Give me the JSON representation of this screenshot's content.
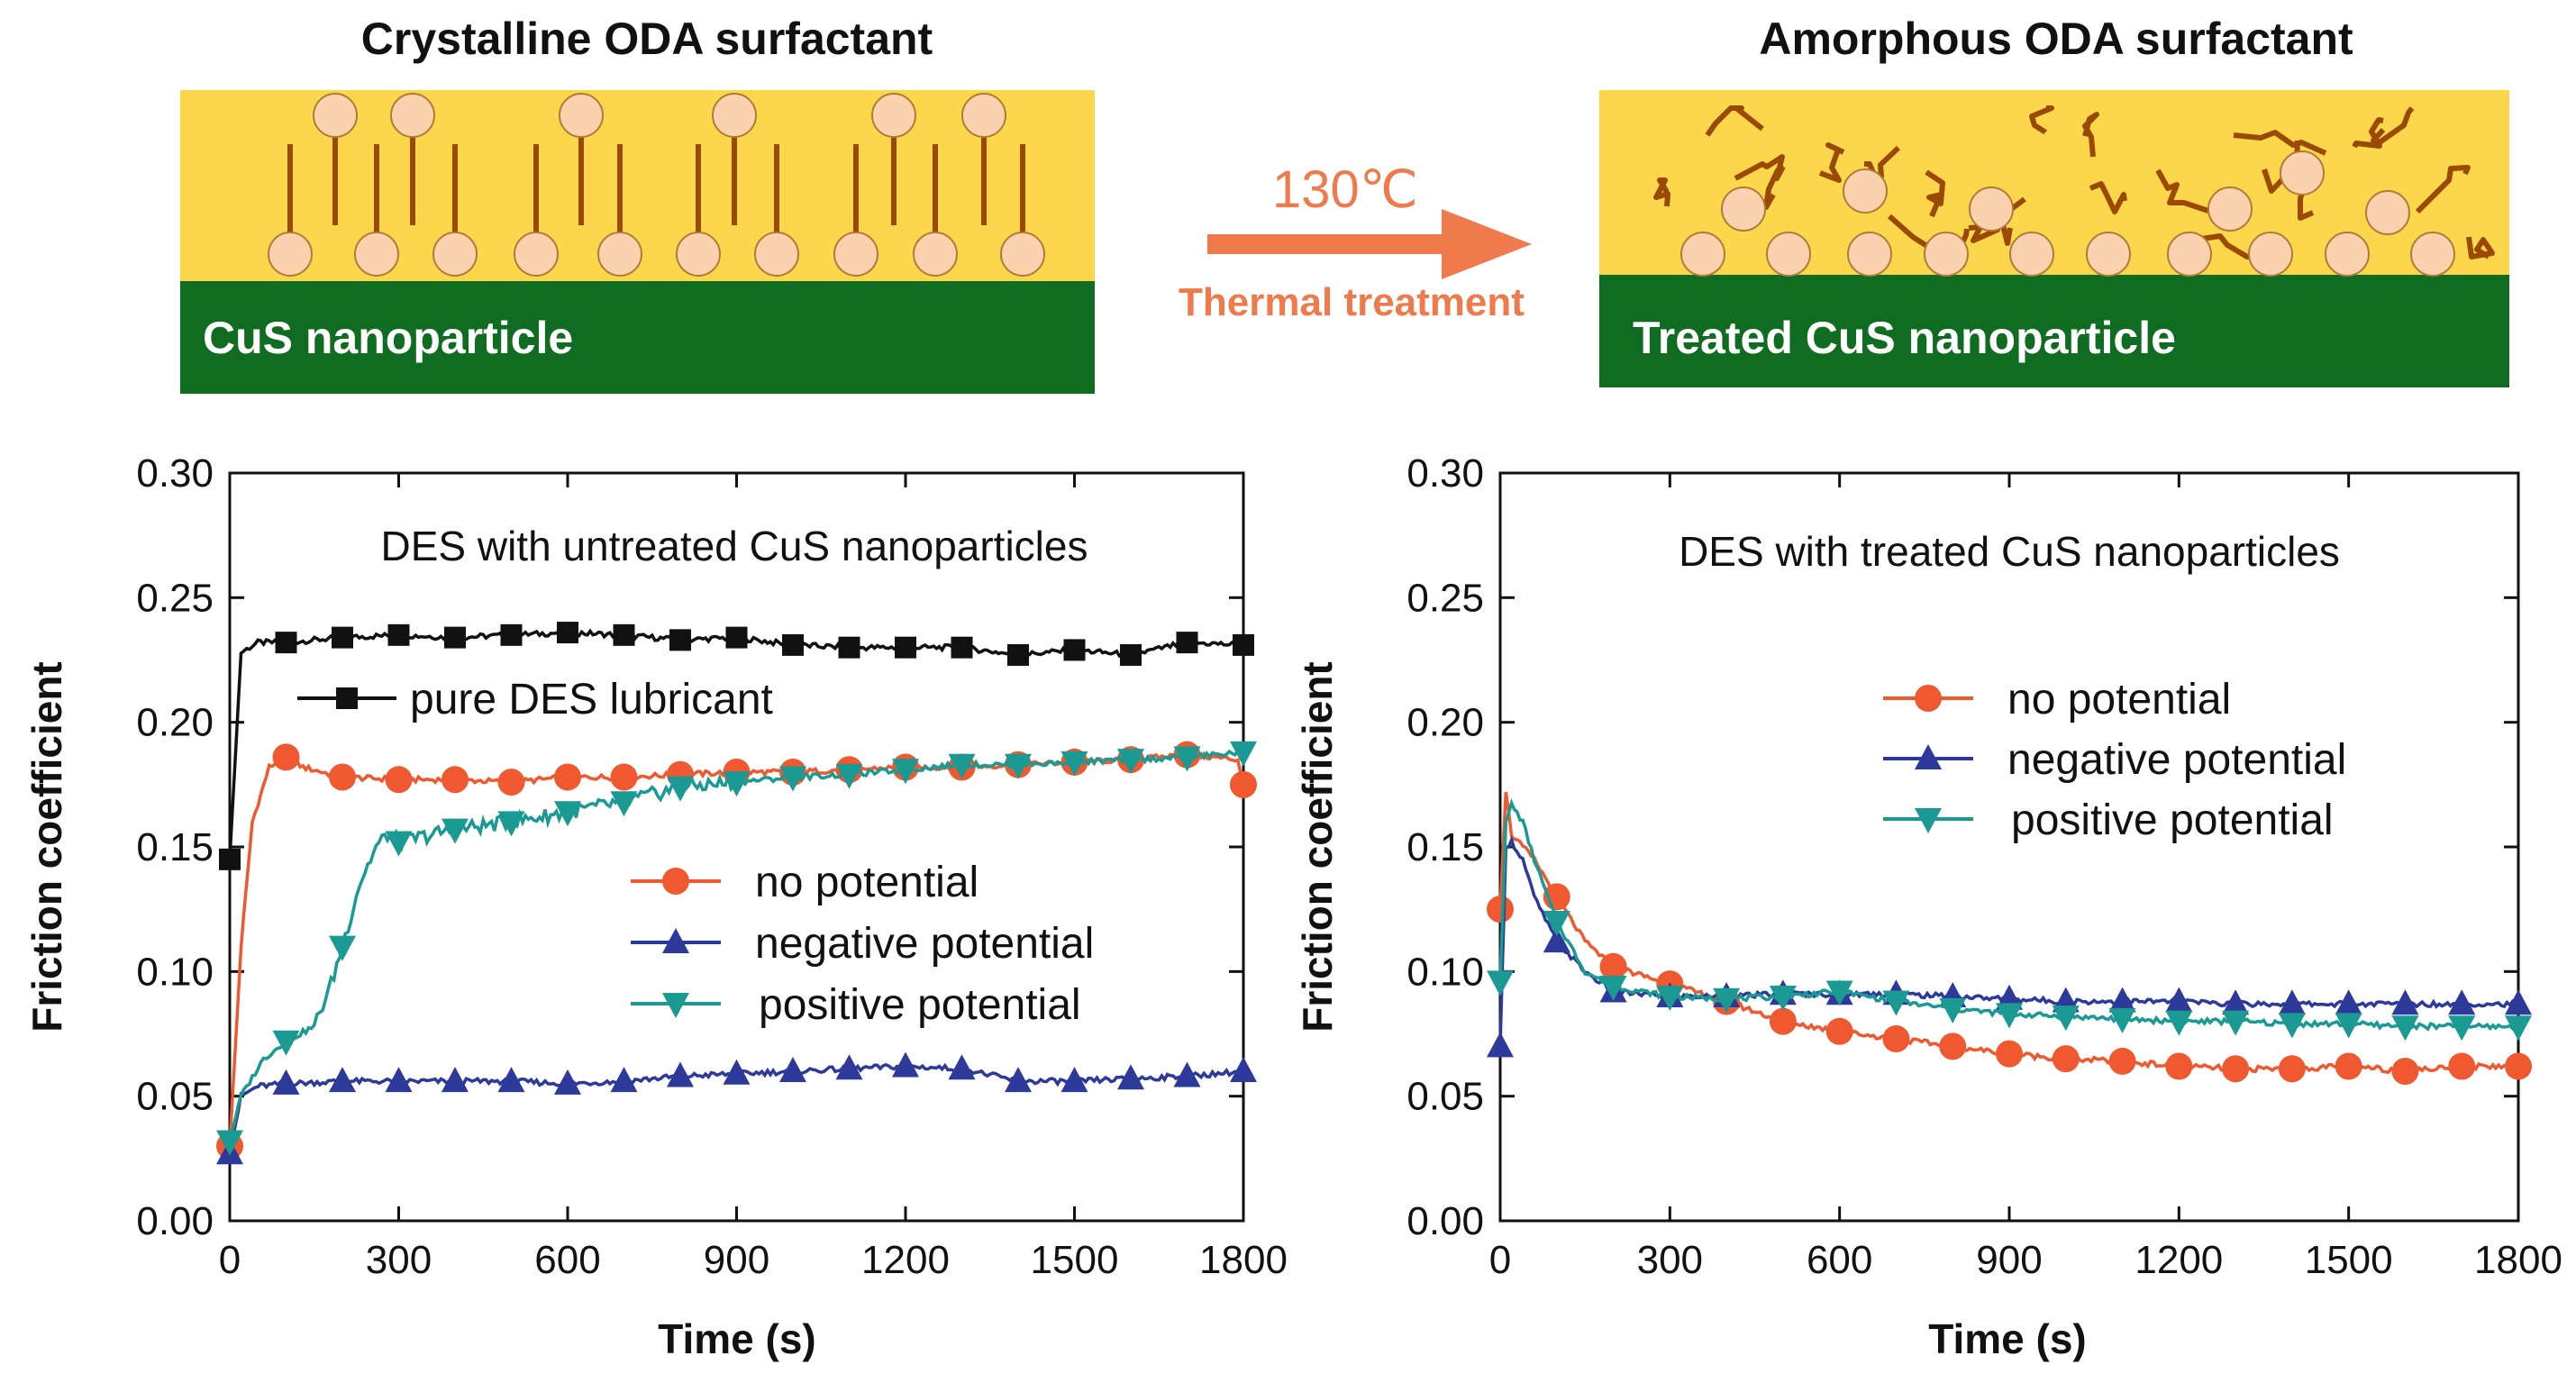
{
  "diagram": {
    "left_title": "Crystalline ODA surfactant",
    "right_title": "Amorphous ODA surfactant",
    "left_band": "CuS nanoparticle",
    "right_band": "Treated CuS nanoparticle",
    "arrow_temp": "130℃",
    "arrow_sub": "Thermal treatment",
    "colors": {
      "surfactant": "#fcd74b",
      "band": "#0f6c21",
      "particle": "#fad3ae",
      "chain": "#9a4a05",
      "arrow": "#ef7b4d"
    }
  },
  "chart_data": [
    {
      "type": "line",
      "title": "DES with untreated CuS nanoparticles",
      "xlabel": "Time (s)",
      "ylabel": "Friction coefficient",
      "xlim": [
        0,
        1800
      ],
      "ylim": [
        0,
        0.3
      ],
      "xticks": [
        0,
        300,
        600,
        900,
        1200,
        1500,
        1800
      ],
      "yticks": [
        0.0,
        0.05,
        0.1,
        0.15,
        0.2,
        0.25,
        0.3
      ],
      "series": [
        {
          "name": "pure DES lubricant",
          "color": "#111111",
          "marker": "square",
          "x": [
            0,
            20,
            50,
            100,
            200,
            300,
            400,
            500,
            600,
            700,
            800,
            900,
            1000,
            1100,
            1200,
            1300,
            1400,
            1500,
            1600,
            1700,
            1800
          ],
          "y": [
            0.145,
            0.228,
            0.232,
            0.232,
            0.234,
            0.235,
            0.234,
            0.235,
            0.236,
            0.235,
            0.233,
            0.234,
            0.231,
            0.23,
            0.23,
            0.23,
            0.227,
            0.229,
            0.227,
            0.232,
            0.231
          ]
        },
        {
          "name": "no potential",
          "color": "#f0582f",
          "marker": "circle",
          "x": [
            0,
            20,
            40,
            70,
            100,
            130,
            200,
            300,
            400,
            500,
            600,
            700,
            800,
            900,
            1000,
            1100,
            1200,
            1300,
            1400,
            1500,
            1600,
            1700,
            1790,
            1800
          ],
          "y": [
            0.03,
            0.11,
            0.16,
            0.182,
            0.186,
            0.182,
            0.178,
            0.177,
            0.177,
            0.176,
            0.178,
            0.178,
            0.179,
            0.18,
            0.18,
            0.181,
            0.182,
            0.182,
            0.183,
            0.184,
            0.185,
            0.187,
            0.185,
            0.175
          ]
        },
        {
          "name": "negative potential",
          "color": "#2d3a9a",
          "marker": "triangle-up",
          "x": [
            0,
            20,
            50,
            100,
            200,
            300,
            400,
            500,
            600,
            700,
            800,
            900,
            1000,
            1100,
            1200,
            1300,
            1400,
            1500,
            1600,
            1700,
            1800
          ],
          "y": [
            0.027,
            0.05,
            0.054,
            0.055,
            0.056,
            0.056,
            0.056,
            0.056,
            0.055,
            0.056,
            0.058,
            0.059,
            0.06,
            0.061,
            0.062,
            0.061,
            0.056,
            0.056,
            0.057,
            0.058,
            0.06
          ]
        },
        {
          "name": "positive potential",
          "color": "#1a9a93",
          "marker": "triangle-down",
          "x": [
            0,
            20,
            60,
            100,
            150,
            180,
            200,
            230,
            260,
            280,
            300,
            400,
            500,
            600,
            700,
            800,
            900,
            1000,
            1100,
            1200,
            1300,
            1400,
            1500,
            1600,
            1700,
            1800
          ],
          "y": [
            0.032,
            0.05,
            0.065,
            0.072,
            0.078,
            0.095,
            0.11,
            0.135,
            0.15,
            0.155,
            0.152,
            0.157,
            0.16,
            0.164,
            0.168,
            0.174,
            0.176,
            0.178,
            0.179,
            0.181,
            0.183,
            0.183,
            0.184,
            0.185,
            0.186,
            0.188
          ]
        }
      ]
    },
    {
      "type": "line",
      "title": "DES with treated CuS nanoparticles",
      "xlabel": "Time (s)",
      "ylabel": "Friction coefficient",
      "xlim": [
        0,
        1800
      ],
      "ylim": [
        0,
        0.3
      ],
      "xticks": [
        0,
        300,
        600,
        900,
        1200,
        1500,
        1800
      ],
      "yticks": [
        0.0,
        0.05,
        0.1,
        0.15,
        0.2,
        0.25,
        0.3
      ],
      "series": [
        {
          "name": "no potential",
          "color": "#f0582f",
          "marker": "circle",
          "x": [
            0,
            10,
            20,
            40,
            60,
            100,
            150,
            200,
            300,
            400,
            500,
            600,
            700,
            800,
            900,
            1000,
            1100,
            1200,
            1300,
            1400,
            1500,
            1600,
            1700,
            1800
          ],
          "y": [
            0.125,
            0.172,
            0.155,
            0.15,
            0.145,
            0.13,
            0.112,
            0.102,
            0.095,
            0.088,
            0.08,
            0.076,
            0.073,
            0.07,
            0.067,
            0.065,
            0.064,
            0.062,
            0.061,
            0.061,
            0.062,
            0.06,
            0.062,
            0.062
          ]
        },
        {
          "name": "negative potential",
          "color": "#2d3a9a",
          "marker": "triangle-up",
          "x": [
            0,
            10,
            20,
            40,
            60,
            100,
            150,
            200,
            300,
            400,
            500,
            600,
            700,
            800,
            900,
            1000,
            1100,
            1200,
            1300,
            1400,
            1500,
            1600,
            1700,
            1800
          ],
          "y": [
            0.07,
            0.15,
            0.152,
            0.145,
            0.13,
            0.112,
            0.1,
            0.092,
            0.09,
            0.09,
            0.091,
            0.091,
            0.091,
            0.09,
            0.089,
            0.088,
            0.088,
            0.088,
            0.087,
            0.087,
            0.087,
            0.087,
            0.087,
            0.087
          ]
        },
        {
          "name": "positive potential",
          "color": "#1a9a93",
          "marker": "triangle-down",
          "x": [
            0,
            10,
            20,
            40,
            60,
            100,
            150,
            200,
            300,
            400,
            500,
            600,
            700,
            800,
            900,
            1000,
            1100,
            1200,
            1300,
            1400,
            1500,
            1600,
            1700,
            1800
          ],
          "y": [
            0.096,
            0.16,
            0.167,
            0.16,
            0.145,
            0.12,
            0.1,
            0.094,
            0.09,
            0.089,
            0.09,
            0.092,
            0.088,
            0.085,
            0.083,
            0.082,
            0.081,
            0.08,
            0.08,
            0.079,
            0.079,
            0.078,
            0.078,
            0.078
          ]
        }
      ]
    }
  ]
}
